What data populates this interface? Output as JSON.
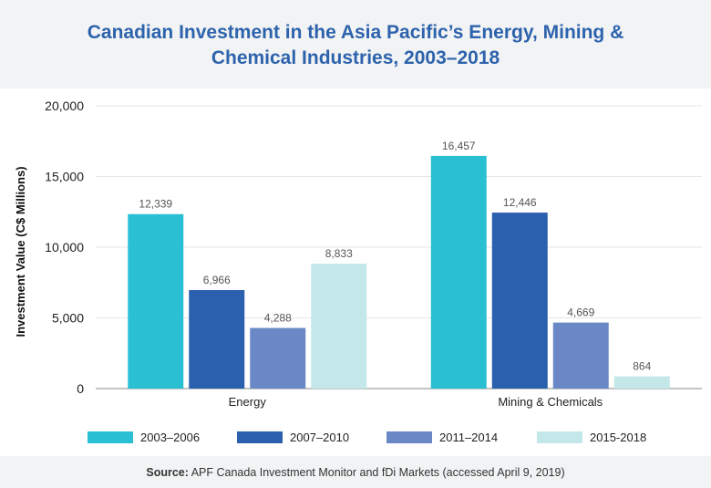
{
  "chart_data": {
    "type": "bar",
    "title_line1": "Canadian Investment in the Asia Pacific’s Energy, Mining &",
    "title_line2": "Chemical Industries, 2003–2018",
    "ylabel": "Investment Value (C$ Millions)",
    "xlabel": "",
    "ylim": [
      0,
      20000
    ],
    "yticks": [
      0,
      5000,
      10000,
      15000,
      20000
    ],
    "ytick_labels": [
      "0",
      "5,000",
      "10,000",
      "15,000",
      "20,000"
    ],
    "grid": true,
    "legend_position": "bottom",
    "categories": [
      "Energy",
      "Mining & Chemicals"
    ],
    "series": [
      {
        "name": "2003–2006",
        "color": "#29c0d4",
        "values": [
          12339,
          16457
        ],
        "labels": [
          "12,339",
          "16,457"
        ]
      },
      {
        "name": "2007–2010",
        "color": "#2a60ae",
        "values": [
          6966,
          12446
        ],
        "labels": [
          "6,966",
          "12,446"
        ]
      },
      {
        "name": "2011–2014",
        "color": "#6b88c6",
        "values": [
          4288,
          4669
        ],
        "labels": [
          "4,288",
          "4,669"
        ]
      },
      {
        "name": "2015-2018",
        "color": "#c4e7ea",
        "values": [
          8833,
          864
        ],
        "labels": [
          "8,833",
          "864"
        ]
      }
    ]
  },
  "footer": {
    "source_label": "Source:",
    "source_text": " APF Canada Investment Monitor and fDi Markets (accessed April 9, 2019)"
  }
}
